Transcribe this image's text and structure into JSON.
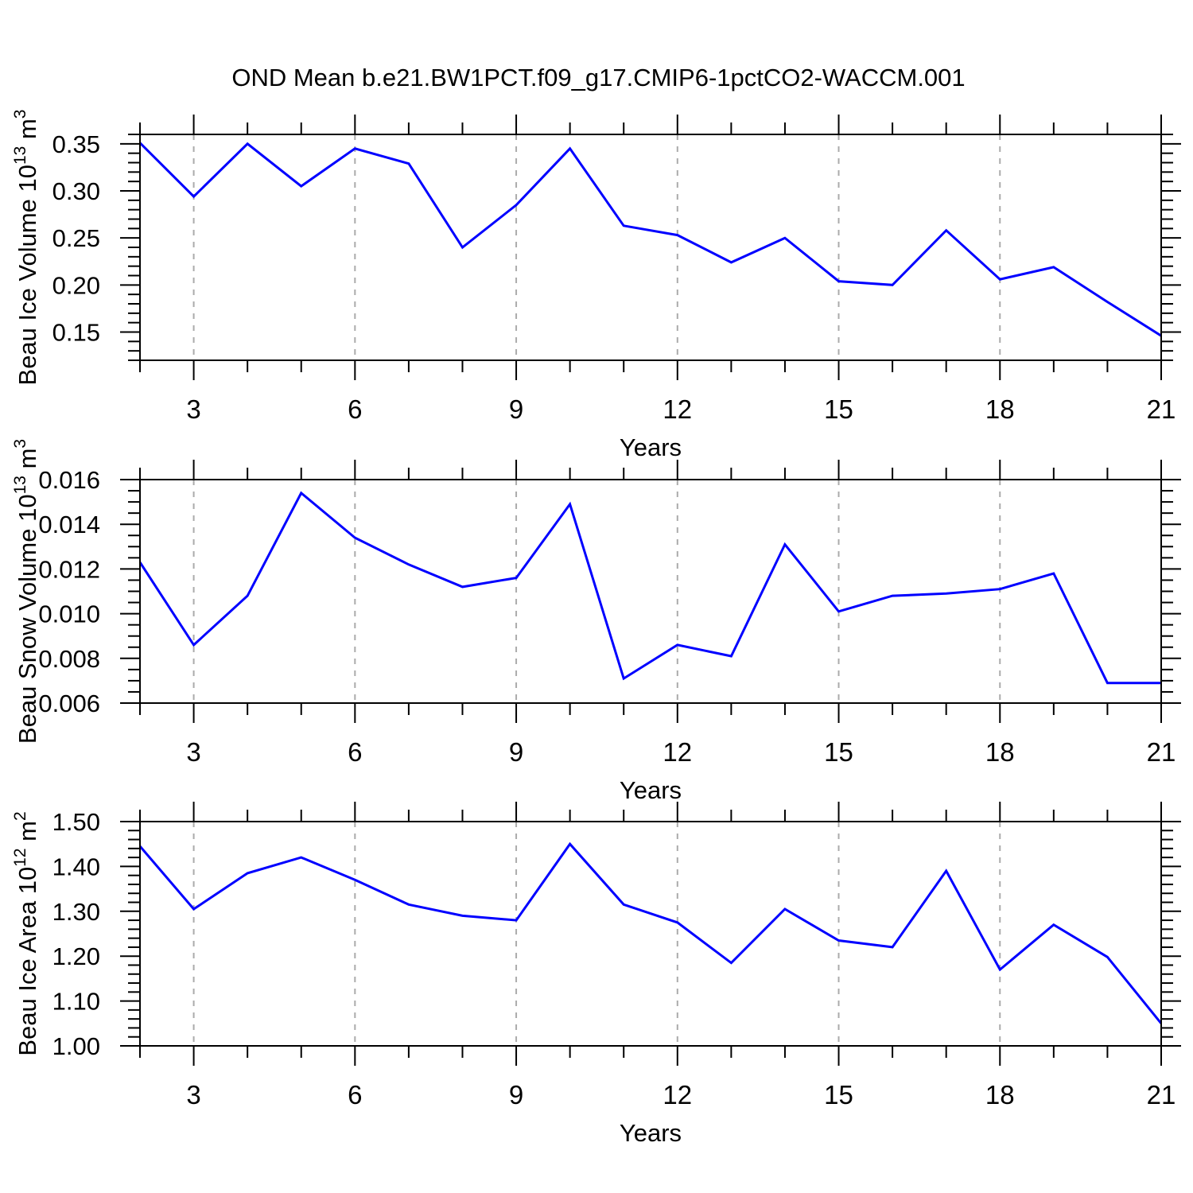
{
  "title": "OND Mean b.e21.BW1PCT.f09_g17.CMIP6-1pctCO2-WACCM.001",
  "style": {
    "line_color": "#0000FF",
    "grid_color": "#ABABAB",
    "axis_color": "#000000",
    "background": "#FFFFFF"
  },
  "chart_data": [
    {
      "type": "line",
      "ylabel": "Beau Ice Volume 10^13 m^3",
      "ylabel_parts": [
        {
          "t": "Beau Ice Volume 10",
          "sup": false
        },
        {
          "t": "13",
          "sup": true
        },
        {
          "t": " m",
          "sup": false
        },
        {
          "t": "3",
          "sup": true
        }
      ],
      "xlabel": "Years",
      "x": [
        2,
        3,
        4,
        5,
        6,
        7,
        8,
        9,
        10,
        11,
        12,
        13,
        14,
        15,
        16,
        17,
        18,
        19,
        20,
        21
      ],
      "values": [
        0.351,
        0.294,
        0.35,
        0.305,
        0.345,
        0.329,
        0.24,
        0.285,
        0.345,
        0.263,
        0.253,
        0.224,
        0.25,
        0.204,
        0.2,
        0.258,
        0.206,
        0.219,
        0.182,
        0.146
      ],
      "xlim": [
        2,
        21
      ],
      "ylim": [
        0.12,
        0.36
      ],
      "y_major_ticks": [
        0.15,
        0.2,
        0.25,
        0.3,
        0.35
      ],
      "y_tick_labels": [
        "0.15",
        "0.20",
        "0.25",
        "0.30",
        "0.35"
      ],
      "y_minor_step": 0.01,
      "x_major_ticks": [
        3,
        6,
        9,
        12,
        15,
        18,
        21
      ],
      "x_tick_labels": [
        "3",
        "6",
        "9",
        "12",
        "15",
        "18",
        "21"
      ],
      "x_minor_step": 1,
      "x_gridlines": [
        3,
        6,
        9,
        12,
        15,
        18
      ],
      "grid": "vertical-dashed",
      "legend": "none"
    },
    {
      "type": "line",
      "ylabel": "Beau Snow Volume 10^13 m^3",
      "ylabel_parts": [
        {
          "t": "Beau Snow Volume 10",
          "sup": false
        },
        {
          "t": "13",
          "sup": true
        },
        {
          "t": " m",
          "sup": false
        },
        {
          "t": "3",
          "sup": true
        }
      ],
      "xlabel": "Years",
      "x": [
        2,
        3,
        4,
        5,
        6,
        7,
        8,
        9,
        10,
        11,
        12,
        13,
        14,
        15,
        16,
        17,
        18,
        19,
        20,
        21
      ],
      "values": [
        0.0123,
        0.0086,
        0.0108,
        0.0154,
        0.0134,
        0.0122,
        0.0112,
        0.0116,
        0.0149,
        0.0071,
        0.0086,
        0.0081,
        0.0131,
        0.0101,
        0.0108,
        0.0109,
        0.0111,
        0.0118,
        0.0069,
        0.0069
      ],
      "xlim": [
        2,
        21
      ],
      "ylim": [
        0.006,
        0.016
      ],
      "y_major_ticks": [
        0.006,
        0.008,
        0.01,
        0.012,
        0.014,
        0.016
      ],
      "y_tick_labels": [
        "0.006",
        "0.008",
        "0.010",
        "0.012",
        "0.014",
        "0.016"
      ],
      "y_minor_step": 0.0005,
      "x_major_ticks": [
        3,
        6,
        9,
        12,
        15,
        18,
        21
      ],
      "x_tick_labels": [
        "3",
        "6",
        "9",
        "12",
        "15",
        "18",
        "21"
      ],
      "x_minor_step": 1,
      "x_gridlines": [
        3,
        6,
        9,
        12,
        15,
        18
      ],
      "grid": "vertical-dashed",
      "legend": "none"
    },
    {
      "type": "line",
      "ylabel": "Beau Ice Area 10^12 m^2",
      "ylabel_parts": [
        {
          "t": "Beau Ice Area 10",
          "sup": false
        },
        {
          "t": "12",
          "sup": true
        },
        {
          "t": " m",
          "sup": false
        },
        {
          "t": "2",
          "sup": true
        }
      ],
      "xlabel": "Years",
      "x": [
        2,
        3,
        4,
        5,
        6,
        7,
        8,
        9,
        10,
        11,
        12,
        13,
        14,
        15,
        16,
        17,
        18,
        19,
        20,
        21
      ],
      "values": [
        1.445,
        1.305,
        1.385,
        1.42,
        1.37,
        1.315,
        1.29,
        1.28,
        1.45,
        1.315,
        1.275,
        1.185,
        1.305,
        1.235,
        1.22,
        1.39,
        1.17,
        1.27,
        1.198,
        1.05
      ],
      "xlim": [
        2,
        21
      ],
      "ylim": [
        1.0,
        1.5
      ],
      "y_major_ticks": [
        1.0,
        1.1,
        1.2,
        1.3,
        1.4,
        1.5
      ],
      "y_tick_labels": [
        "1.00",
        "1.10",
        "1.20",
        "1.30",
        "1.40",
        "1.50"
      ],
      "y_minor_step": 0.02,
      "x_major_ticks": [
        3,
        6,
        9,
        12,
        15,
        18,
        21
      ],
      "x_tick_labels": [
        "3",
        "6",
        "9",
        "12",
        "15",
        "18",
        "21"
      ],
      "x_minor_step": 1,
      "x_gridlines": [
        3,
        6,
        9,
        12,
        15,
        18
      ],
      "grid": "vertical-dashed",
      "legend": "none"
    }
  ]
}
